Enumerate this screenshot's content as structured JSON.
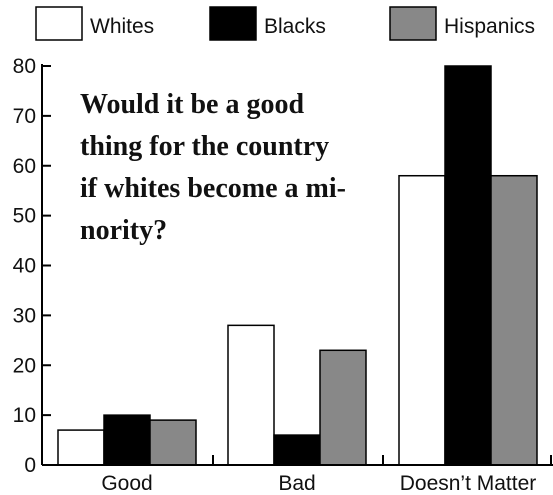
{
  "chart_data": {
    "type": "bar",
    "title_lines": [
      "Would it be a good",
      "thing for the country",
      "if whites become a mi-",
      "nority?"
    ],
    "categories": [
      "Good",
      "Bad",
      "Doesn’t Matter"
    ],
    "series": [
      {
        "name": "Whites",
        "color": "#ffffff",
        "values": [
          7,
          28,
          58
        ]
      },
      {
        "name": "Blacks",
        "color": "#000000",
        "values": [
          10,
          6,
          80
        ]
      },
      {
        "name": "Hispanics",
        "color": "#888888",
        "values": [
          9,
          23,
          58
        ]
      }
    ],
    "ylim": [
      0,
      80
    ],
    "yticks": [
      "0",
      "10",
      "20",
      "30",
      "40",
      "50",
      "60",
      "70",
      "80"
    ],
    "legend_position": "top",
    "grid": false
  }
}
